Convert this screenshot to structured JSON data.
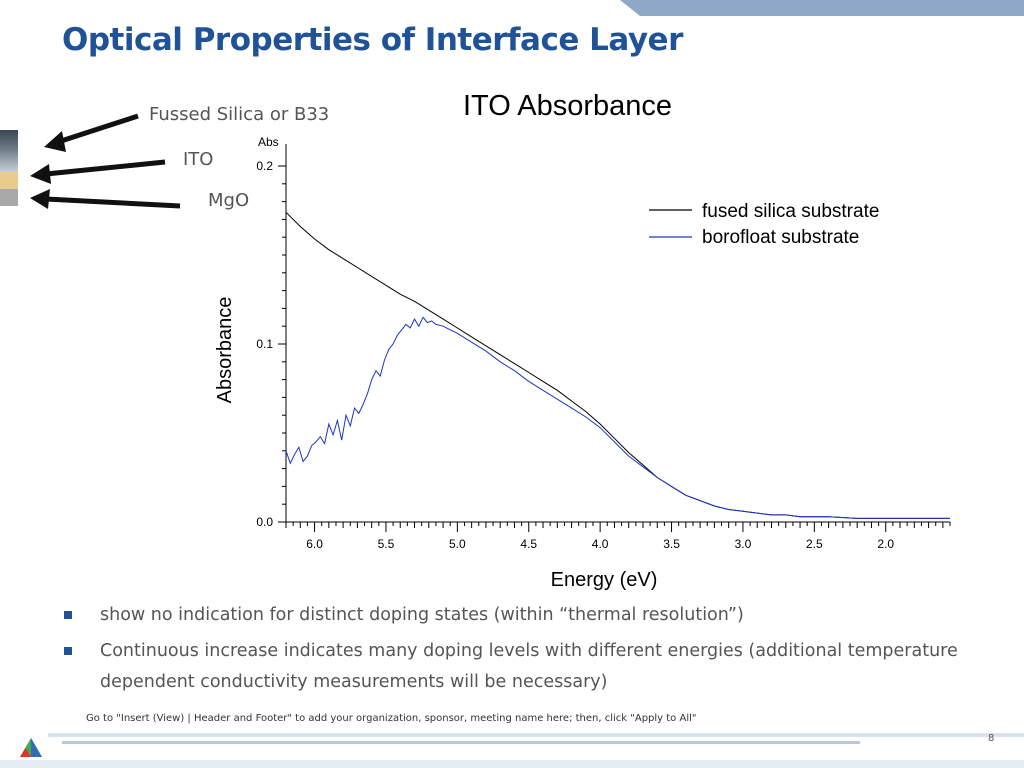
{
  "slide": {
    "title": "Optical Properties of Interface Layer",
    "layers": [
      "Fussed Silica or B33",
      "ITO",
      "MgO"
    ],
    "bullets": [
      "show no indication for distinct doping states (within “thermal resolution”)",
      "Continuous increase indicates many doping levels with different energies (additional temperature dependent conductivity measurements will be necessary)"
    ],
    "footer_text": "Go to \"Insert (View) | Header and Footer\" to add your organization, sponsor, meeting name here; then, click \"Apply to All\"",
    "page_number": "8",
    "colors": {
      "title": "#1f5296",
      "accent_band": "#8fa8c8",
      "ito_layer": "#e9cc8c",
      "mgo_layer": "#a9a9a9",
      "bullet": "#1f5296"
    },
    "icons": [
      "argonne-logo-icon",
      "arrow-left-icon"
    ]
  },
  "chart_data": {
    "type": "line",
    "title": "ITO Absorbance",
    "xlabel": "Energy (eV)",
    "ylabel": "Absorbance",
    "y_unit_label": "Abs",
    "xlim": [
      6.2,
      1.55
    ],
    "ylim": [
      0.0,
      0.2
    ],
    "x_reversed": true,
    "x_ticks": [
      "6.0",
      "5.5",
      "5.0",
      "4.5",
      "4.0",
      "3.5",
      "3.0",
      "2.5",
      "2.0"
    ],
    "x_tick_values": [
      6.0,
      5.5,
      5.0,
      4.5,
      4.0,
      3.5,
      3.0,
      2.5,
      2.0
    ],
    "y_ticks": [
      "0.0",
      "0.1",
      "0.2"
    ],
    "y_tick_values": [
      0.0,
      0.1,
      0.2
    ],
    "grid": false,
    "legend_position": "top-right",
    "series": [
      {
        "name": "fused silica substrate",
        "color": "#000000",
        "x": [
          6.2,
          6.1,
          6.0,
          5.9,
          5.8,
          5.7,
          5.6,
          5.5,
          5.4,
          5.3,
          5.2,
          5.1,
          5.0,
          4.9,
          4.8,
          4.7,
          4.6,
          4.5,
          4.4,
          4.3,
          4.2,
          4.1,
          4.0,
          3.9,
          3.8,
          3.7,
          3.6,
          3.5,
          3.4,
          3.3,
          3.2,
          3.1,
          3.0,
          2.9,
          2.8,
          2.7,
          2.6,
          2.5,
          2.4,
          2.2,
          2.0,
          1.8,
          1.55
        ],
        "y": [
          0.174,
          0.166,
          0.159,
          0.153,
          0.148,
          0.143,
          0.138,
          0.133,
          0.128,
          0.124,
          0.119,
          0.114,
          0.109,
          0.104,
          0.099,
          0.094,
          0.089,
          0.084,
          0.079,
          0.074,
          0.068,
          0.062,
          0.055,
          0.047,
          0.039,
          0.032,
          0.025,
          0.02,
          0.015,
          0.012,
          0.009,
          0.007,
          0.006,
          0.005,
          0.004,
          0.004,
          0.003,
          0.003,
          0.003,
          0.002,
          0.002,
          0.002,
          0.002
        ]
      },
      {
        "name": "borofloat substrate",
        "color": "#1a35c8",
        "x": [
          6.2,
          6.17,
          6.14,
          6.11,
          6.08,
          6.05,
          6.02,
          5.99,
          5.96,
          5.93,
          5.9,
          5.87,
          5.84,
          5.81,
          5.78,
          5.75,
          5.72,
          5.69,
          5.66,
          5.63,
          5.6,
          5.57,
          5.54,
          5.51,
          5.48,
          5.45,
          5.42,
          5.39,
          5.36,
          5.33,
          5.3,
          5.27,
          5.24,
          5.21,
          5.18,
          5.15,
          5.1,
          5.05,
          5.0,
          4.9,
          4.8,
          4.7,
          4.6,
          4.5,
          4.4,
          4.3,
          4.2,
          4.1,
          4.0,
          3.9,
          3.8,
          3.7,
          3.6,
          3.5,
          3.4,
          3.3,
          3.2,
          3.1,
          3.0,
          2.9,
          2.8,
          2.7,
          2.6,
          2.5,
          2.4,
          2.2,
          2.0,
          1.8,
          1.55
        ],
        "y": [
          0.04,
          0.033,
          0.038,
          0.042,
          0.034,
          0.037,
          0.043,
          0.045,
          0.048,
          0.044,
          0.055,
          0.049,
          0.057,
          0.046,
          0.06,
          0.054,
          0.064,
          0.061,
          0.066,
          0.072,
          0.08,
          0.085,
          0.082,
          0.091,
          0.097,
          0.1,
          0.105,
          0.108,
          0.111,
          0.109,
          0.114,
          0.11,
          0.115,
          0.112,
          0.113,
          0.111,
          0.11,
          0.108,
          0.106,
          0.101,
          0.096,
          0.09,
          0.085,
          0.079,
          0.074,
          0.069,
          0.064,
          0.059,
          0.053,
          0.045,
          0.037,
          0.031,
          0.025,
          0.02,
          0.015,
          0.012,
          0.009,
          0.007,
          0.006,
          0.005,
          0.004,
          0.004,
          0.003,
          0.003,
          0.003,
          0.002,
          0.002,
          0.002,
          0.002
        ]
      }
    ]
  }
}
